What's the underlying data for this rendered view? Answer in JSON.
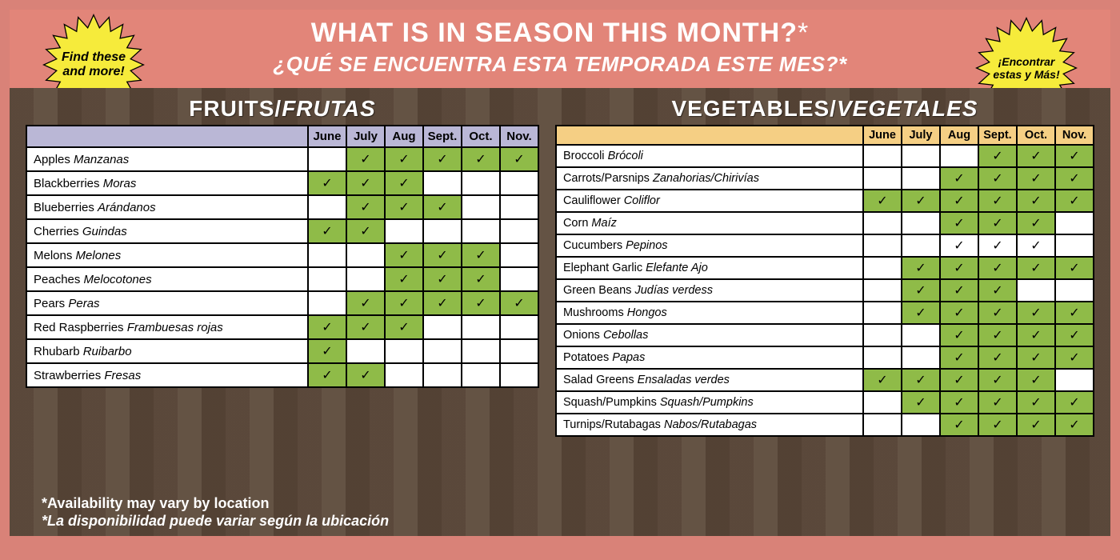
{
  "colors": {
    "outer_bg": "#d98278",
    "header_bg": "#e28579",
    "title_text": "#ffffff",
    "burst_fill": "#f6eb3b",
    "burst_stroke": "#000000",
    "fruits_header_bg": "#bab7d6",
    "veg_header_bg": "#f5cf84",
    "cell_on_bg": "#8fbb48",
    "cell_border": "#000000",
    "table_bg": "#ffffff",
    "check_glyph": "✓"
  },
  "typography": {
    "title_fontsize_pt": 26,
    "subtitle_fontsize_pt": 20,
    "section_title_fontsize_pt": 21,
    "table_fontsize_pt": 11,
    "burst_fontsize_pt": 12
  },
  "header": {
    "title": "WHAT IS IN SEASON THIS MONTH?",
    "title_asterisk": "*",
    "subtitle": "¿QUÉ SE ENCUENTRA ESTA TEMPORADA ESTE MES?*"
  },
  "bursts": {
    "left": "Find these and more!",
    "right": "¡Encontrar estas y Más!"
  },
  "months": [
    "June",
    "July",
    "Aug",
    "Sept.",
    "Oct.",
    "Nov."
  ],
  "fruits": {
    "section_en": "FRUITS/",
    "section_es": "FRUTAS",
    "rows": [
      {
        "en": "Apples",
        "es": "Manzanas",
        "cells": [
          0,
          1,
          1,
          1,
          1,
          1
        ]
      },
      {
        "en": "Blackberries",
        "es": "Moras",
        "cells": [
          1,
          1,
          1,
          0,
          0,
          0
        ]
      },
      {
        "en": "Blueberries",
        "es": "Arándanos",
        "cells": [
          0,
          1,
          1,
          1,
          0,
          0
        ]
      },
      {
        "en": "Cherries",
        "es": "Guindas",
        "cells": [
          1,
          1,
          0,
          0,
          0,
          0
        ]
      },
      {
        "en": "Melons",
        "es": "Melones",
        "cells": [
          0,
          0,
          1,
          1,
          1,
          0
        ]
      },
      {
        "en": "Peaches",
        "es": "Melocotones",
        "cells": [
          0,
          0,
          1,
          1,
          1,
          0
        ]
      },
      {
        "en": "Pears",
        "es": "Peras",
        "cells": [
          0,
          1,
          1,
          1,
          1,
          1
        ]
      },
      {
        "en": "Red Raspberries",
        "es": "Frambuesas rojas",
        "cells": [
          1,
          1,
          1,
          0,
          0,
          0
        ]
      },
      {
        "en": "Rhubarb",
        "es": "Ruibarbo",
        "cells": [
          1,
          0,
          0,
          0,
          0,
          0
        ]
      },
      {
        "en": "Strawberries",
        "es": "Fresas",
        "cells": [
          1,
          1,
          0,
          0,
          0,
          0
        ]
      }
    ]
  },
  "vegetables": {
    "section_en": "VEGETABLES/",
    "section_es": "VEGETALES",
    "rows": [
      {
        "en": "Broccoli",
        "es": " Brócoli",
        "cells": [
          0,
          0,
          0,
          1,
          1,
          1
        ]
      },
      {
        "en": "Carrots/Parsnips",
        "es": " Zanahorias/Chirivías",
        "cells": [
          0,
          0,
          1,
          1,
          1,
          1
        ]
      },
      {
        "en": "Cauliflower",
        "es": "Coliflor",
        "cells": [
          1,
          1,
          1,
          1,
          1,
          1
        ]
      },
      {
        "en": "Corn",
        "es": " Maíz",
        "cells": [
          0,
          0,
          1,
          1,
          1,
          0
        ]
      },
      {
        "en": "Cucumbers",
        "es": " Pepinos",
        "cells": [
          0,
          0,
          2,
          2,
          2,
          0
        ]
      },
      {
        "en": "Elephant Garlic",
        "es": " Elefante Ajo",
        "cells": [
          0,
          1,
          1,
          1,
          1,
          1
        ]
      },
      {
        "en": "Green Beans",
        "es": " Judías verdess",
        "cells": [
          0,
          1,
          1,
          1,
          0,
          0
        ]
      },
      {
        "en": "Mushrooms",
        "es": "Hongos",
        "cells": [
          0,
          1,
          1,
          1,
          1,
          1
        ]
      },
      {
        "en": "Onions",
        "es": " Cebollas",
        "cells": [
          0,
          0,
          1,
          1,
          1,
          1
        ]
      },
      {
        "en": "Potatoes",
        "es": " Papas",
        "cells": [
          0,
          0,
          1,
          1,
          1,
          1
        ]
      },
      {
        "en": "Salad Greens",
        "es": " Ensaladas verdes",
        "cells": [
          1,
          1,
          1,
          1,
          1,
          0
        ]
      },
      {
        "en": "Squash/Pumpkins",
        "es": " Squash/Pumpkins",
        "cells": [
          0,
          1,
          1,
          1,
          1,
          1
        ]
      },
      {
        "en": "Turnips/Rutabagas",
        "es": " Nabos/Rutabagas",
        "cells": [
          0,
          0,
          1,
          1,
          1,
          1
        ]
      }
    ]
  },
  "footnote": {
    "line1": "*Availability may vary by location",
    "line2": "*La disponibilidad puede variar según la ubicación"
  }
}
